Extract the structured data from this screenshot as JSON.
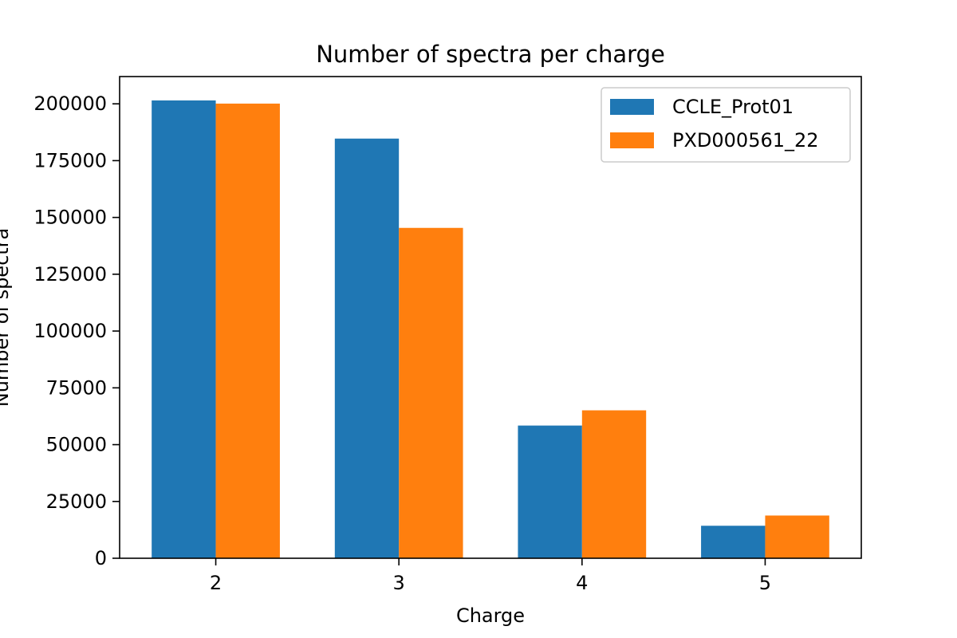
{
  "chart_data": {
    "type": "bar",
    "title": "Number of spectra per charge",
    "xlabel": "Charge",
    "ylabel": "Number of spectra",
    "categories": [
      "2",
      "3",
      "4",
      "5"
    ],
    "series": [
      {
        "name": "CCLE_Prot01",
        "color": "#1f77b4",
        "values": [
          201500,
          184700,
          58400,
          14300
        ]
      },
      {
        "name": "PXD000561_22",
        "color": "#ff7f0e",
        "values": [
          200100,
          145400,
          65100,
          18800
        ]
      }
    ],
    "ylim": [
      0,
      212000
    ],
    "yticks": [
      0,
      25000,
      50000,
      75000,
      100000,
      125000,
      150000,
      175000,
      200000
    ],
    "ytick_labels": [
      "0",
      "25000",
      "50000",
      "75000",
      "100000",
      "125000",
      "150000",
      "175000",
      "200000"
    ],
    "grid": false,
    "legend_position": "top-right"
  }
}
